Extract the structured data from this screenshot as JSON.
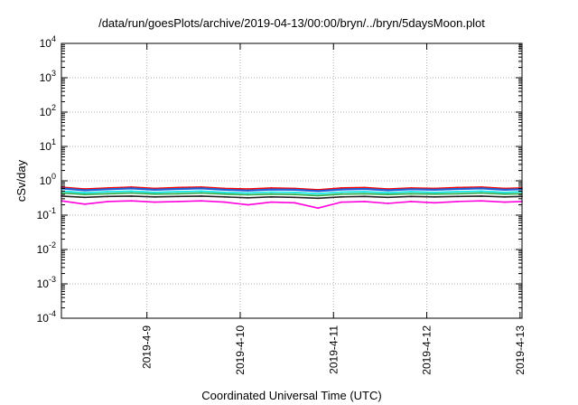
{
  "chart_data": {
    "type": "line",
    "title": "/data/run/goesPlots/archive/2019-04-13/00:00/bryn/../bryn/5daysMoon.plot",
    "xlabel": "Coordinated Universal Time (UTC)",
    "ylabel": "cSv/day",
    "yscale": "log",
    "ylim": [
      0.0001,
      10000
    ],
    "y_ticks": [
      {
        "base": "10",
        "exp": "-4",
        "value": 0.0001
      },
      {
        "base": "10",
        "exp": "-3",
        "value": 0.001
      },
      {
        "base": "10",
        "exp": "-2",
        "value": 0.01
      },
      {
        "base": "10",
        "exp": "-1",
        "value": 0.1
      },
      {
        "base": "10",
        "exp": "0",
        "value": 1
      },
      {
        "base": "10",
        "exp": "1",
        "value": 10
      },
      {
        "base": "10",
        "exp": "2",
        "value": 100
      },
      {
        "base": "10",
        "exp": "3",
        "value": 1000
      },
      {
        "base": "10",
        "exp": "4",
        "value": 10000
      }
    ],
    "xlim": [
      "2019-04-08T02:00",
      "2019-04-13T00:30"
    ],
    "x_ticks": [
      {
        "label": "2019-4-9",
        "date": "2019-04-09"
      },
      {
        "label": "2019-4-10",
        "date": "2019-04-10"
      },
      {
        "label": "2019-4-11",
        "date": "2019-04-11"
      },
      {
        "label": "2019-4-12",
        "date": "2019-04-12"
      },
      {
        "label": "2019-4-13",
        "date": "2019-04-13"
      }
    ],
    "grid": true,
    "legend": "none",
    "x": [
      "2019-04-08T02:00",
      "2019-04-08T08:00",
      "2019-04-08T14:00",
      "2019-04-08T20:00",
      "2019-04-09T02:00",
      "2019-04-09T08:00",
      "2019-04-09T14:00",
      "2019-04-09T20:00",
      "2019-04-10T02:00",
      "2019-04-10T08:00",
      "2019-04-10T14:00",
      "2019-04-10T20:00",
      "2019-04-11T02:00",
      "2019-04-11T08:00",
      "2019-04-11T14:00",
      "2019-04-11T20:00",
      "2019-04-12T02:00",
      "2019-04-12T08:00",
      "2019-04-12T14:00",
      "2019-04-12T20:00",
      "2019-04-13T00:30"
    ],
    "series": [
      {
        "color": "#ff0000",
        "values": [
          0.65,
          0.58,
          0.62,
          0.66,
          0.6,
          0.64,
          0.66,
          0.6,
          0.58,
          0.62,
          0.6,
          0.55,
          0.62,
          0.64,
          0.58,
          0.62,
          0.6,
          0.64,
          0.66,
          0.6,
          0.62
        ]
      },
      {
        "color": "#1e5fd6",
        "values": [
          0.6,
          0.53,
          0.57,
          0.6,
          0.55,
          0.58,
          0.6,
          0.55,
          0.52,
          0.56,
          0.55,
          0.5,
          0.56,
          0.58,
          0.53,
          0.57,
          0.55,
          0.58,
          0.6,
          0.55,
          0.57
        ]
      },
      {
        "color": "#00e6e6",
        "values": [
          0.5,
          0.45,
          0.48,
          0.5,
          0.46,
          0.48,
          0.5,
          0.46,
          0.44,
          0.47,
          0.46,
          0.42,
          0.47,
          0.48,
          0.45,
          0.48,
          0.46,
          0.48,
          0.5,
          0.46,
          0.48
        ]
      },
      {
        "color": "#22aa44",
        "values": [
          0.44,
          0.4,
          0.42,
          0.44,
          0.41,
          0.42,
          0.44,
          0.41,
          0.39,
          0.41,
          0.4,
          0.37,
          0.41,
          0.42,
          0.4,
          0.42,
          0.41,
          0.42,
          0.44,
          0.41,
          0.42
        ]
      },
      {
        "color": "#222222",
        "values": [
          0.36,
          0.33,
          0.35,
          0.36,
          0.34,
          0.35,
          0.36,
          0.34,
          0.32,
          0.34,
          0.33,
          0.31,
          0.34,
          0.35,
          0.33,
          0.35,
          0.34,
          0.35,
          0.36,
          0.34,
          0.35
        ]
      },
      {
        "color": "#ff00dd",
        "values": [
          0.26,
          0.21,
          0.25,
          0.26,
          0.24,
          0.25,
          0.26,
          0.24,
          0.2,
          0.24,
          0.23,
          0.16,
          0.24,
          0.25,
          0.22,
          0.25,
          0.23,
          0.25,
          0.26,
          0.24,
          0.25
        ]
      }
    ]
  }
}
